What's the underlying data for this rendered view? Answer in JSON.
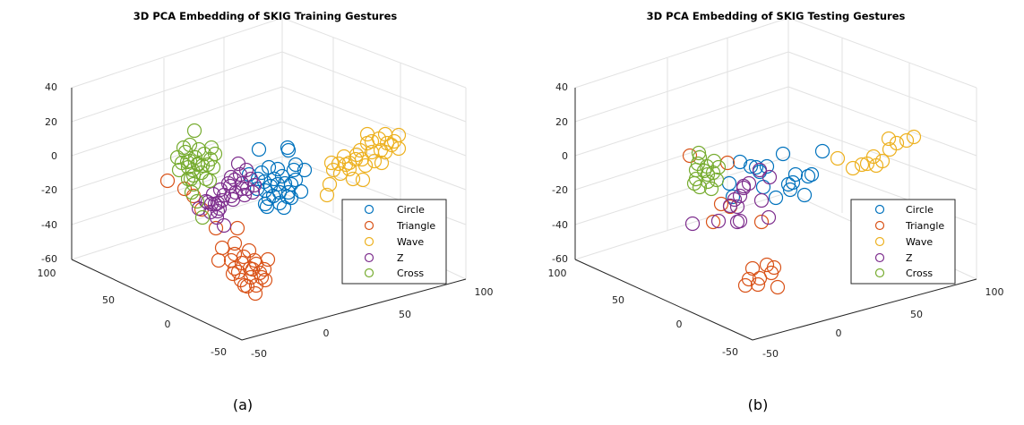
{
  "chart_data": [
    {
      "type": "scatter",
      "title": "3D PCA Embedding of SKIG Training Gestures",
      "caption": "(a)",
      "z_ticks": [
        "40",
        "20",
        "0",
        "-20",
        "-40",
        "-60"
      ],
      "x_ticks": [
        "100",
        "50",
        "0",
        "-50"
      ],
      "y_ticks": [
        "-50",
        "0",
        "50",
        "100"
      ],
      "legend": [
        "Circle",
        "Triangle",
        "Wave",
        "Z",
        "Cross"
      ],
      "series": [
        {
          "name": "Circle",
          "color": "#0072BD",
          "points": [
            [
              289,
              167
            ],
            [
              321,
              165
            ],
            [
              322,
              168
            ],
            [
              300,
              187
            ],
            [
              310,
              189
            ],
            [
              295,
              203
            ],
            [
              288,
              200
            ],
            [
              302,
              208
            ],
            [
              312,
              215
            ],
            [
              318,
              205
            ],
            [
              321,
              220
            ],
            [
              305,
              219
            ],
            [
              296,
              213
            ],
            [
              298,
              231
            ],
            [
              312,
              227
            ],
            [
              317,
              232
            ],
            [
              325,
              221
            ],
            [
              325,
              206
            ],
            [
              330,
              201
            ],
            [
              328,
              190
            ],
            [
              330,
              184
            ],
            [
              340,
              190
            ],
            [
              336,
              214
            ],
            [
              322,
              215
            ],
            [
              278,
              195
            ],
            [
              292,
              193
            ],
            [
              296,
              228
            ],
            [
              300,
              222
            ],
            [
              287,
              211
            ],
            [
              306,
              200
            ],
            [
              315,
              197
            ],
            [
              310,
              206
            ]
          ]
        },
        {
          "name": "Triangle",
          "color": "#D95319",
          "points": [
            [
              187,
              202
            ],
            [
              206,
              211
            ],
            [
              225,
              234
            ],
            [
              216,
              219
            ],
            [
              241,
              255
            ],
            [
              265,
              255
            ],
            [
              262,
              272
            ],
            [
              248,
              277
            ],
            [
              244,
              291
            ],
            [
              258,
              291
            ],
            [
              270,
              294
            ],
            [
              284,
              291
            ],
            [
              279,
              300
            ],
            [
              266,
              304
            ],
            [
              280,
              310
            ],
            [
              290,
              305
            ],
            [
              296,
              313
            ],
            [
              286,
              319
            ],
            [
              273,
              319
            ],
            [
              260,
              306
            ],
            [
              272,
              287
            ],
            [
              282,
              301
            ],
            [
              295,
              301
            ],
            [
              299,
              290
            ],
            [
              286,
              295
            ],
            [
              262,
              300
            ],
            [
              285,
              328
            ],
            [
              269,
              313
            ],
            [
              292,
              310
            ],
            [
              276,
              320
            ],
            [
              262,
              284
            ],
            [
              278,
              280
            ]
          ]
        },
        {
          "name": "Wave",
          "color": "#EDB120",
          "points": [
            [
              410,
              150
            ],
            [
              423,
              155
            ],
            [
              430,
              150
            ],
            [
              445,
              151
            ],
            [
              437,
              162
            ],
            [
              425,
              168
            ],
            [
              410,
              160
            ],
            [
              402,
              168
            ],
            [
              397,
              178
            ],
            [
              390,
              182
            ],
            [
              378,
              183
            ],
            [
              380,
              194
            ],
            [
              390,
              189
            ],
            [
              394,
              200
            ],
            [
              405,
              201
            ],
            [
              408,
              185
            ],
            [
              418,
              180
            ],
            [
              430,
              170
            ],
            [
              426,
              182
            ],
            [
              415,
              170
            ],
            [
              398,
              173
            ],
            [
              384,
              175
            ],
            [
              372,
              190
            ],
            [
              386,
              184
            ],
            [
              404,
              178
            ],
            [
              440,
              158
            ],
            [
              445,
              166
            ],
            [
              365,
              218
            ],
            [
              368,
              206
            ],
            [
              415,
              158
            ],
            [
              432,
              160
            ],
            [
              370,
              182
            ]
          ]
        },
        {
          "name": "Z",
          "color": "#7E2F8E",
          "points": [
            [
              222,
              233
            ],
            [
              230,
              225
            ],
            [
              238,
              217
            ],
            [
              246,
              212
            ],
            [
              255,
              205
            ],
            [
              262,
              201
            ],
            [
              270,
              205
            ],
            [
              276,
              211
            ],
            [
              280,
              200
            ],
            [
              275,
              190
            ],
            [
              266,
              183
            ],
            [
              258,
              198
            ],
            [
              250,
              218
            ],
            [
              243,
              227
            ],
            [
              235,
              237
            ],
            [
              242,
              243
            ],
            [
              250,
              252
            ],
            [
              243,
              236
            ],
            [
              232,
              226
            ],
            [
              245,
              233
            ],
            [
              258,
              219
            ],
            [
              270,
              211
            ],
            [
              268,
              195
            ],
            [
              257,
              208
            ],
            [
              284,
              207
            ],
            [
              282,
              215
            ],
            [
              260,
              223
            ],
            [
              240,
              228
            ],
            [
              248,
              224
            ],
            [
              263,
              215
            ],
            [
              273,
              218
            ],
            [
              236,
              228
            ]
          ]
        },
        {
          "name": "Cross",
          "color": "#77AC30",
          "points": [
            [
              217,
              146
            ],
            [
              205,
              165
            ],
            [
              198,
              176
            ],
            [
              209,
              181
            ],
            [
              215,
              190
            ],
            [
              213,
              200
            ],
            [
              216,
              206
            ],
            [
              221,
              184
            ],
            [
              228,
              172
            ],
            [
              236,
              165
            ],
            [
              240,
              172
            ],
            [
              238,
              187
            ],
            [
              225,
              193
            ],
            [
              221,
              183
            ],
            [
              207,
              170
            ],
            [
              212,
              162
            ],
            [
              200,
              190
            ],
            [
              214,
              215
            ],
            [
              220,
              225
            ],
            [
              226,
              243
            ],
            [
              234,
              202
            ],
            [
              230,
              200
            ],
            [
              222,
              167
            ],
            [
              210,
              200
            ],
            [
              218,
              176
            ],
            [
              232,
              184
            ],
            [
              203,
              182
            ],
            [
              210,
              187
            ],
            [
              226,
              185
            ],
            [
              216,
              196
            ],
            [
              235,
              178
            ],
            [
              212,
              180
            ]
          ]
        }
      ]
    },
    {
      "type": "scatter",
      "title": "3D PCA Embedding of SKIG Testing Gestures",
      "caption": "(b)",
      "z_ticks": [
        "40",
        "20",
        "0",
        "-20",
        "-40",
        "-60"
      ],
      "x_ticks": [
        "100",
        "50",
        "0",
        "-50"
      ],
      "y_ticks": [
        "-50",
        "0",
        "50",
        "100"
      ],
      "legend": [
        "Circle",
        "Triangle",
        "Wave",
        "Z",
        "Cross"
      ],
      "series": [
        {
          "name": "Circle",
          "color": "#0072BD",
          "points": [
            [
              826,
              181
            ],
            [
              838,
              186
            ],
            [
              848,
              192
            ],
            [
              856,
              186
            ],
            [
              874,
              172
            ],
            [
              888,
              195
            ],
            [
              880,
              206
            ],
            [
              882,
              212
            ],
            [
              866,
              221
            ],
            [
              852,
              209
            ],
            [
              844,
              187
            ],
            [
              902,
              197
            ],
            [
              906,
              195
            ],
            [
              898,
              218
            ],
            [
              918,
              169
            ],
            [
              818,
              220
            ],
            [
              814,
              205
            ],
            [
              885,
              204
            ]
          ]
        },
        {
          "name": "Triangle",
          "color": "#D95319",
          "points": [
            [
              770,
              174
            ],
            [
              812,
              182
            ],
            [
              805,
              228
            ],
            [
              796,
              248
            ],
            [
              815,
              231
            ],
            [
              850,
              248
            ],
            [
              840,
              300
            ],
            [
              836,
              312
            ],
            [
              846,
              318
            ],
            [
              856,
              296
            ],
            [
              868,
              321
            ],
            [
              861,
              305
            ],
            [
              848,
              311
            ],
            [
              832,
              319
            ],
            [
              864,
              299
            ]
          ]
        },
        {
          "name": "Wave",
          "color": "#EDB120",
          "points": [
            [
              935,
              177
            ],
            [
              952,
              188
            ],
            [
              962,
              184
            ],
            [
              968,
              183
            ],
            [
              978,
              185
            ],
            [
              985,
              180
            ],
            [
              993,
              167
            ],
            [
              1001,
              160
            ],
            [
              1012,
              157
            ],
            [
              1020,
              153
            ],
            [
              992,
              155
            ],
            [
              975,
              175
            ]
          ]
        },
        {
          "name": "Z",
          "color": "#7E2F8E",
          "points": [
            [
              848,
              190
            ],
            [
              859,
              198
            ],
            [
              836,
              205
            ],
            [
              830,
              210
            ],
            [
              826,
              219
            ],
            [
              820,
              223
            ],
            [
              815,
              230
            ],
            [
              823,
              231
            ],
            [
              823,
              248
            ],
            [
              802,
              247
            ],
            [
              773,
              250
            ],
            [
              850,
              224
            ],
            [
              858,
              243
            ],
            [
              826,
              247
            ],
            [
              830,
              208
            ]
          ]
        },
        {
          "name": "Cross",
          "color": "#77AC30",
          "points": [
            [
              780,
              171
            ],
            [
              779,
              183
            ],
            [
              777,
              190
            ],
            [
              786,
              191
            ],
            [
              790,
              203
            ],
            [
              775,
              205
            ],
            [
              781,
              209
            ],
            [
              794,
              211
            ],
            [
              800,
              201
            ],
            [
              796,
              193
            ],
            [
              789,
              186
            ],
            [
              797,
              180
            ],
            [
              781,
              176
            ],
            [
              777,
              200
            ],
            [
              790,
              195
            ],
            [
              802,
              187
            ]
          ]
        }
      ]
    }
  ]
}
